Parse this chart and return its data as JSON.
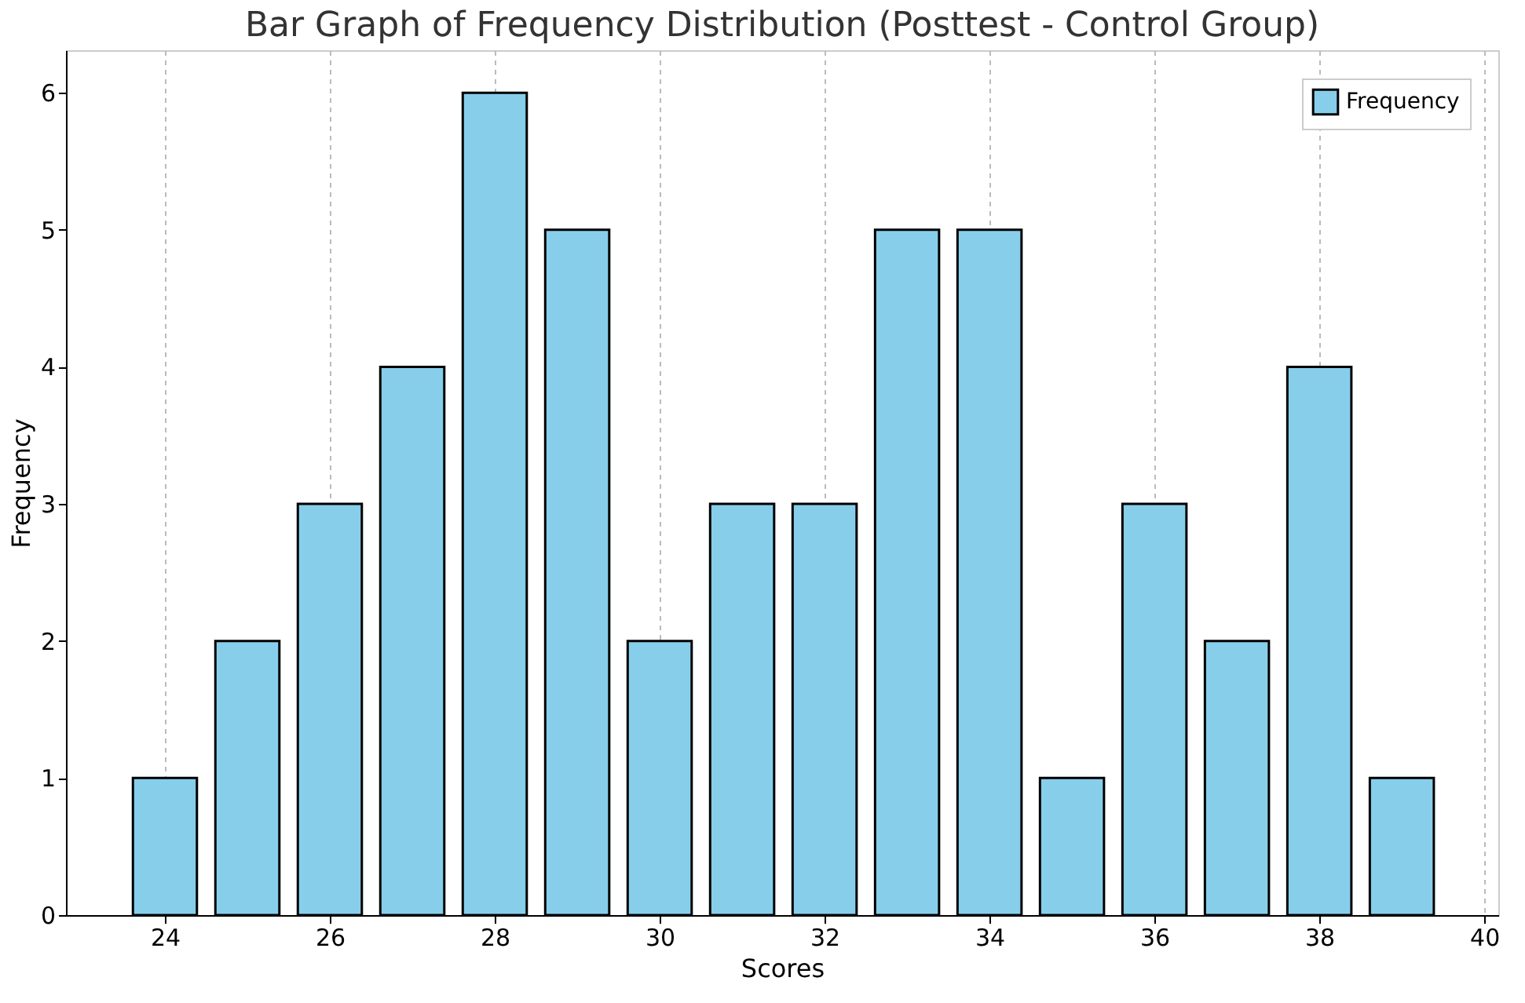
{
  "chart_data": {
    "type": "bar",
    "title": "Bar Graph of Frequency Distribution (Posttest - Control Group)",
    "xlabel": "Scores",
    "ylabel": "Frequency",
    "x": [
      24,
      25,
      26,
      27,
      28,
      29,
      30,
      31,
      32,
      33,
      34,
      35,
      36,
      37,
      38,
      39
    ],
    "series": [
      {
        "name": "Frequency",
        "color": "#87ceeb",
        "values": [
          1,
          2,
          3,
          4,
          6,
          5,
          2,
          3,
          3,
          5,
          5,
          1,
          3,
          2,
          4,
          1
        ]
      }
    ],
    "xlim": [
      22.8,
      40.17
    ],
    "xticks": [
      24,
      26,
      28,
      30,
      32,
      34,
      36,
      38,
      40
    ],
    "ylim": [
      0,
      6.31
    ],
    "yticks": [
      0,
      1,
      2,
      3,
      4,
      5,
      6
    ],
    "grid": "x",
    "legend": "top right"
  }
}
